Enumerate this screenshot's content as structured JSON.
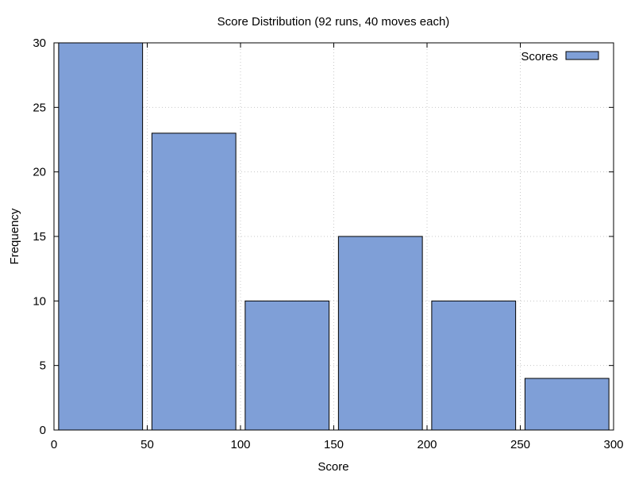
{
  "chart_data": {
    "type": "bar",
    "title": "Score Distribution (92 runs, 40 moves each)",
    "xlabel": "Score",
    "ylabel": "Frequency",
    "xlim": [
      0,
      300
    ],
    "ylim": [
      0,
      30
    ],
    "xticks": [
      0,
      50,
      100,
      150,
      200,
      250,
      300
    ],
    "yticks": [
      0,
      5,
      10,
      15,
      20,
      25,
      30
    ],
    "grid": true,
    "legend_position": "top-right",
    "series": [
      {
        "name": "Scores",
        "color": "#7f9fd7",
        "bins": [
          {
            "x_start": 0,
            "x_end": 50,
            "value": 30
          },
          {
            "x_start": 50,
            "x_end": 100,
            "value": 23
          },
          {
            "x_start": 100,
            "x_end": 150,
            "value": 10
          },
          {
            "x_start": 150,
            "x_end": 200,
            "value": 15
          },
          {
            "x_start": 200,
            "x_end": 250,
            "value": 10
          },
          {
            "x_start": 250,
            "x_end": 300,
            "value": 4
          }
        ]
      }
    ]
  }
}
